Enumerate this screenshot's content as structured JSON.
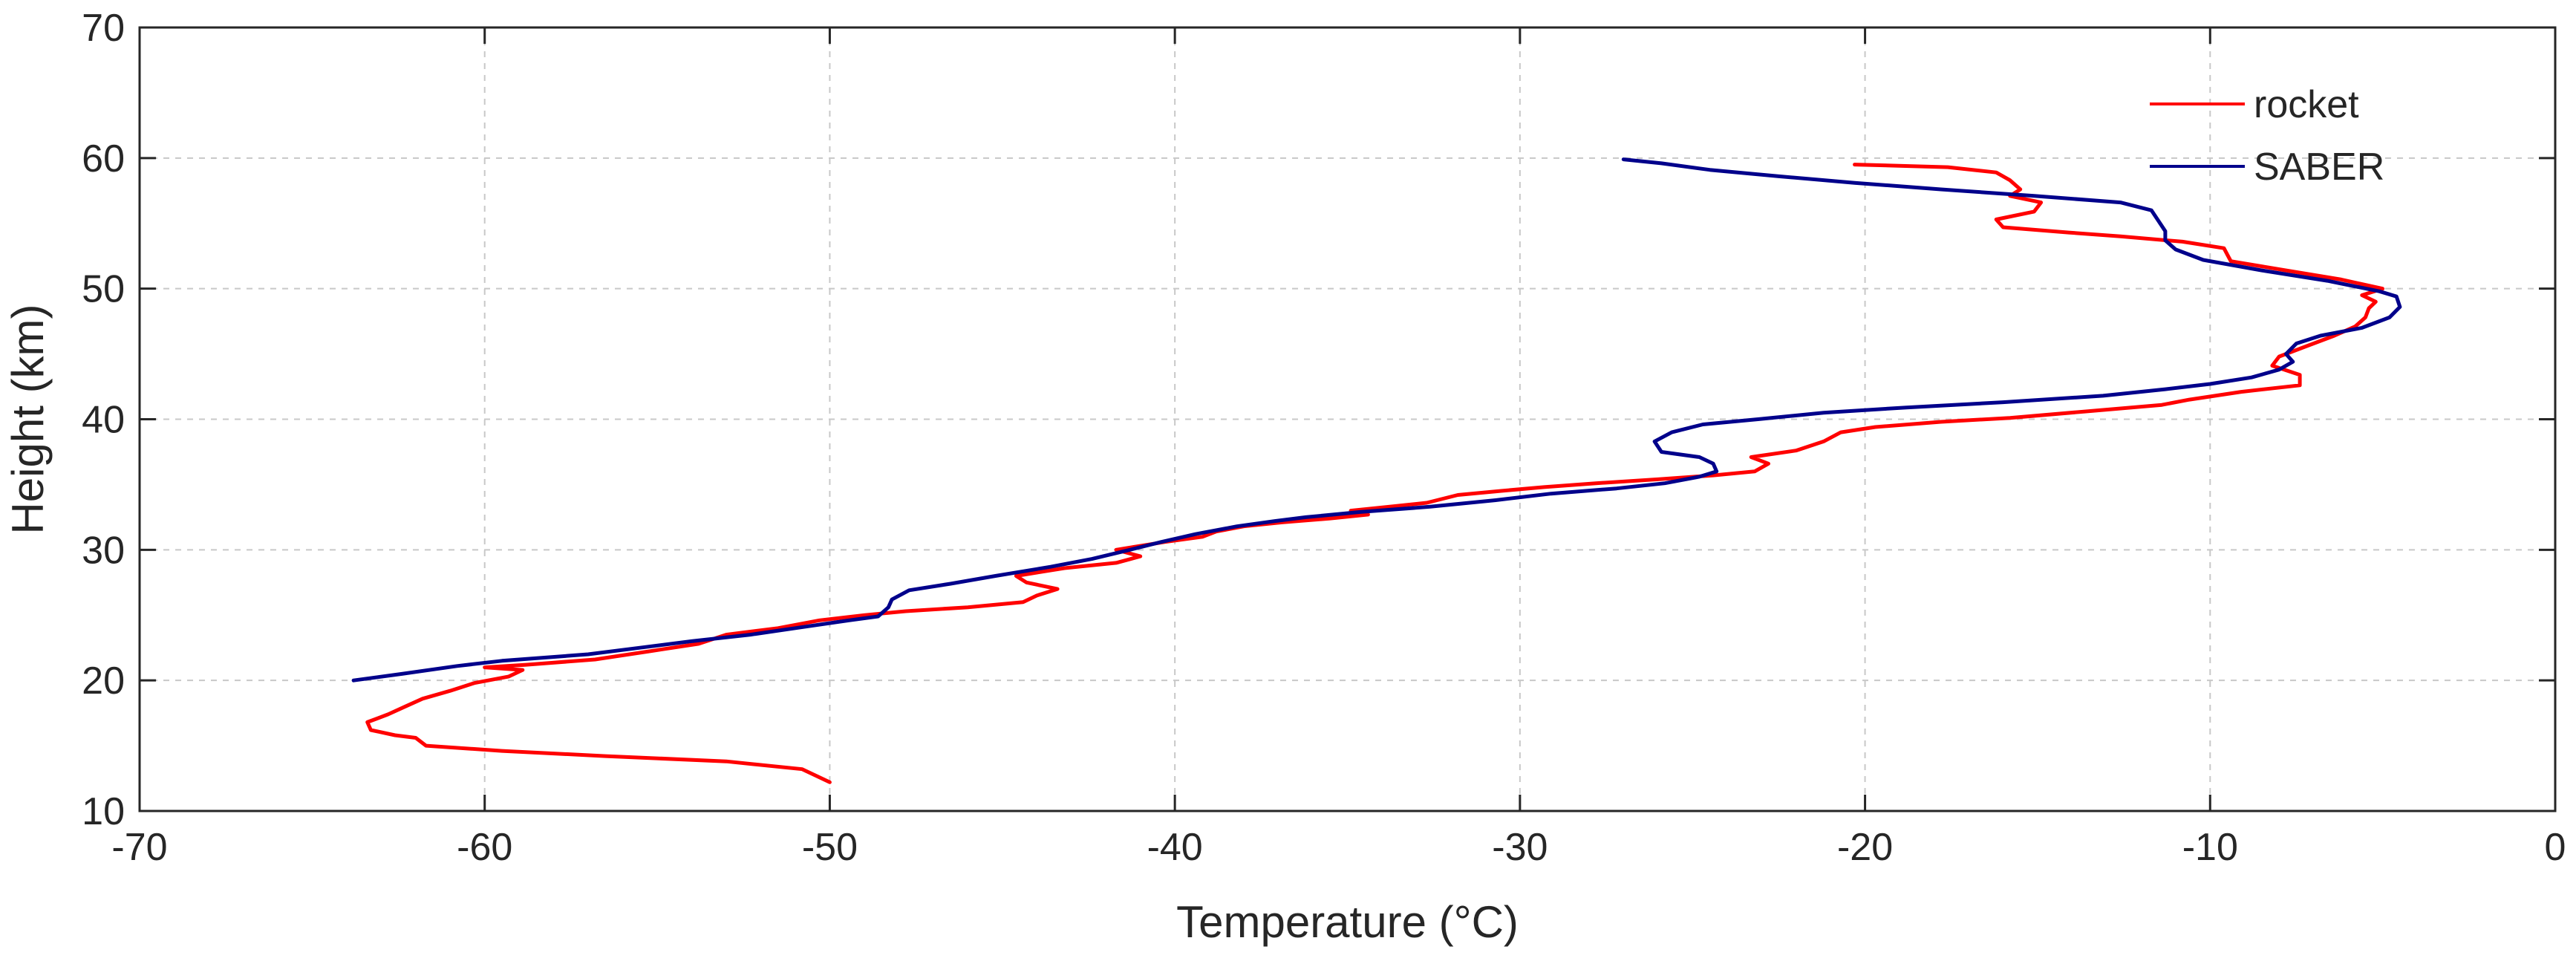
{
  "chart_data": {
    "type": "line",
    "xlabel": "Temperature (°C)",
    "ylabel": "Height (km)",
    "xlim": [
      -70,
      0
    ],
    "ylim": [
      10,
      70
    ],
    "xticks": [
      -70,
      -60,
      -50,
      -40,
      -30,
      -20,
      -10,
      0
    ],
    "yticks": [
      10,
      20,
      30,
      40,
      50,
      60,
      70
    ],
    "xtick_labels": [
      "-70",
      "-60",
      "-50",
      "-40",
      "-30",
      "-20",
      "-10",
      "0"
    ],
    "ytick_labels": [
      "10",
      "20",
      "30",
      "40",
      "50",
      "60",
      "70"
    ],
    "grid": true,
    "legend_position": "top-right",
    "series": [
      {
        "name": "rocket",
        "color": "#ff0000",
        "points": [
          [
            -50.0,
            12.2
          ],
          [
            -50.8,
            13.2
          ],
          [
            -53.0,
            13.8
          ],
          [
            -56.5,
            14.2
          ],
          [
            -59.5,
            14.6
          ],
          [
            -61.7,
            15.0
          ],
          [
            -62.0,
            15.6
          ],
          [
            -62.6,
            15.8
          ],
          [
            -63.3,
            16.2
          ],
          [
            -63.4,
            16.8
          ],
          [
            -62.8,
            17.4
          ],
          [
            -62.3,
            18.0
          ],
          [
            -61.8,
            18.6
          ],
          [
            -61.0,
            19.2
          ],
          [
            -60.3,
            19.8
          ],
          [
            -59.3,
            20.3
          ],
          [
            -58.9,
            20.8
          ],
          [
            -60.0,
            21.0
          ],
          [
            -58.8,
            21.2
          ],
          [
            -56.8,
            21.6
          ],
          [
            -55.3,
            22.2
          ],
          [
            -53.8,
            22.8
          ],
          [
            -53.0,
            23.5
          ],
          [
            -51.5,
            24.0
          ],
          [
            -50.3,
            24.6
          ],
          [
            -49.0,
            25.0
          ],
          [
            -47.8,
            25.3
          ],
          [
            -46.0,
            25.6
          ],
          [
            -44.4,
            26.0
          ],
          [
            -44.0,
            26.5
          ],
          [
            -43.4,
            27.0
          ],
          [
            -44.3,
            27.5
          ],
          [
            -44.6,
            28.0
          ],
          [
            -43.2,
            28.6
          ],
          [
            -41.7,
            29.0
          ],
          [
            -41.0,
            29.5
          ],
          [
            -41.7,
            30.0
          ],
          [
            -40.3,
            30.6
          ],
          [
            -39.2,
            31.0
          ],
          [
            -38.8,
            31.4
          ],
          [
            -38.0,
            31.8
          ],
          [
            -36.9,
            32.1
          ],
          [
            -35.5,
            32.4
          ],
          [
            -34.4,
            32.7
          ],
          [
            -34.9,
            33.0
          ],
          [
            -33.8,
            33.3
          ],
          [
            -32.7,
            33.6
          ],
          [
            -31.8,
            34.2
          ],
          [
            -30.6,
            34.5
          ],
          [
            -29.3,
            34.8
          ],
          [
            -27.8,
            35.1
          ],
          [
            -26.0,
            35.4
          ],
          [
            -24.4,
            35.7
          ],
          [
            -23.2,
            36.0
          ],
          [
            -22.8,
            36.6
          ],
          [
            -23.3,
            37.1
          ],
          [
            -22.0,
            37.6
          ],
          [
            -21.2,
            38.3
          ],
          [
            -20.7,
            39.0
          ],
          [
            -19.7,
            39.4
          ],
          [
            -17.8,
            39.8
          ],
          [
            -15.8,
            40.1
          ],
          [
            -13.6,
            40.6
          ],
          [
            -11.4,
            41.1
          ],
          [
            -10.6,
            41.5
          ],
          [
            -9.1,
            42.1
          ],
          [
            -7.4,
            42.6
          ],
          [
            -7.4,
            43.4
          ],
          [
            -8.2,
            44.1
          ],
          [
            -8.0,
            44.8
          ],
          [
            -7.2,
            45.6
          ],
          [
            -6.4,
            46.4
          ],
          [
            -5.8,
            47.1
          ],
          [
            -5.5,
            47.8
          ],
          [
            -5.4,
            48.5
          ],
          [
            -5.2,
            49.0
          ],
          [
            -5.6,
            49.5
          ],
          [
            -5.0,
            50.0
          ],
          [
            -6.2,
            50.7
          ],
          [
            -7.8,
            51.4
          ],
          [
            -9.4,
            52.1
          ],
          [
            -9.5,
            52.6
          ],
          [
            -9.6,
            53.1
          ],
          [
            -10.8,
            53.6
          ],
          [
            -12.6,
            54.0
          ],
          [
            -14.1,
            54.3
          ],
          [
            -16.0,
            54.7
          ],
          [
            -16.2,
            55.3
          ],
          [
            -15.1,
            55.9
          ],
          [
            -14.9,
            56.6
          ],
          [
            -15.8,
            57.1
          ],
          [
            -15.5,
            57.6
          ],
          [
            -15.8,
            58.3
          ],
          [
            -16.2,
            58.9
          ],
          [
            -17.6,
            59.3
          ],
          [
            -20.3,
            59.5
          ]
        ]
      },
      {
        "name": "SABER",
        "color": "#00008b",
        "points": [
          [
            -63.8,
            20.0
          ],
          [
            -62.4,
            20.5
          ],
          [
            -60.8,
            21.1
          ],
          [
            -59.5,
            21.5
          ],
          [
            -57.0,
            22.0
          ],
          [
            -55.5,
            22.5
          ],
          [
            -54.0,
            23.0
          ],
          [
            -52.3,
            23.5
          ],
          [
            -51.0,
            24.0
          ],
          [
            -49.7,
            24.5
          ],
          [
            -48.6,
            24.9
          ],
          [
            -48.3,
            25.6
          ],
          [
            -48.2,
            26.2
          ],
          [
            -47.7,
            26.9
          ],
          [
            -46.5,
            27.4
          ],
          [
            -45.2,
            28.0
          ],
          [
            -43.6,
            28.7
          ],
          [
            -42.4,
            29.3
          ],
          [
            -41.3,
            30.0
          ],
          [
            -40.4,
            30.6
          ],
          [
            -39.4,
            31.2
          ],
          [
            -38.2,
            31.8
          ],
          [
            -37.1,
            32.2
          ],
          [
            -36.2,
            32.5
          ],
          [
            -34.6,
            32.9
          ],
          [
            -32.6,
            33.3
          ],
          [
            -30.7,
            33.8
          ],
          [
            -29.1,
            34.3
          ],
          [
            -27.2,
            34.7
          ],
          [
            -25.8,
            35.1
          ],
          [
            -24.8,
            35.6
          ],
          [
            -24.3,
            36.0
          ],
          [
            -24.4,
            36.6
          ],
          [
            -24.8,
            37.1
          ],
          [
            -25.9,
            37.5
          ],
          [
            -26.1,
            38.3
          ],
          [
            -25.6,
            39.0
          ],
          [
            -24.7,
            39.6
          ],
          [
            -23.1,
            40.0
          ],
          [
            -21.2,
            40.5
          ],
          [
            -18.8,
            40.9
          ],
          [
            -16.0,
            41.3
          ],
          [
            -13.1,
            41.8
          ],
          [
            -11.3,
            42.3
          ],
          [
            -10.0,
            42.7
          ],
          [
            -8.8,
            43.2
          ],
          [
            -8.0,
            43.8
          ],
          [
            -7.6,
            44.4
          ],
          [
            -7.8,
            45.0
          ],
          [
            -7.5,
            45.8
          ],
          [
            -6.8,
            46.4
          ],
          [
            -5.6,
            47.0
          ],
          [
            -4.8,
            47.8
          ],
          [
            -4.5,
            48.6
          ],
          [
            -4.6,
            49.4
          ],
          [
            -5.1,
            49.8
          ],
          [
            -6.6,
            50.6
          ],
          [
            -8.5,
            51.4
          ],
          [
            -10.2,
            52.2
          ],
          [
            -11.0,
            53.0
          ],
          [
            -11.3,
            53.7
          ],
          [
            -11.3,
            54.4
          ],
          [
            -11.5,
            55.2
          ],
          [
            -11.7,
            56.0
          ],
          [
            -12.6,
            56.6
          ],
          [
            -15.1,
            57.1
          ],
          [
            -17.8,
            57.6
          ],
          [
            -20.3,
            58.1
          ],
          [
            -22.5,
            58.6
          ],
          [
            -24.5,
            59.1
          ],
          [
            -25.9,
            59.6
          ],
          [
            -27.0,
            59.9
          ]
        ]
      }
    ]
  }
}
